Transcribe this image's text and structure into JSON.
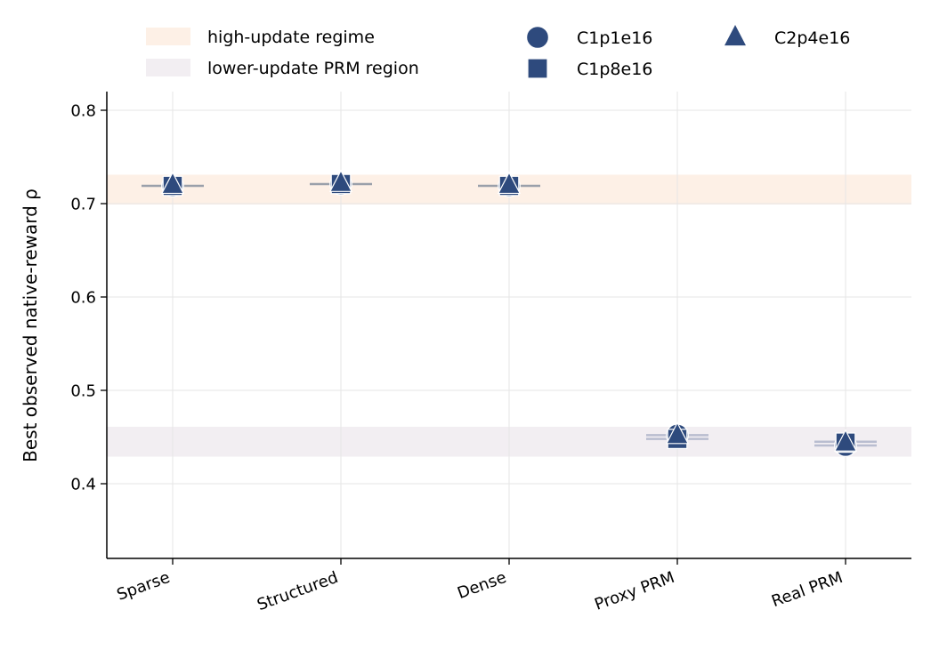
{
  "chart_data": {
    "type": "scatter",
    "title": "",
    "xlabel": "",
    "ylabel": "Best observed native-reward ρ",
    "ylim": [
      0.32,
      0.82
    ],
    "yticks": [
      0.4,
      0.5,
      0.6,
      0.7,
      0.8
    ],
    "categories": [
      "Sparse",
      "Structured",
      "Dense",
      "Proxy PRM",
      "Real PRM"
    ],
    "grid": true,
    "legend_position": "top",
    "marker_color": "#2e4a7d",
    "bands": [
      {
        "name": "high-update regime",
        "y0": 0.699,
        "y1": 0.731,
        "color": "#fdf0e6"
      },
      {
        "name": "lower-update PRM region",
        "y0": 0.429,
        "y1": 0.461,
        "color": "#f2eef2"
      }
    ],
    "series": [
      {
        "name": "C1p1e16",
        "marker": "circle",
        "values": [
          0.719,
          0.721,
          0.719,
          0.452,
          0.441
        ]
      },
      {
        "name": "C1p8e16",
        "marker": "square",
        "values": [
          0.719,
          0.721,
          0.719,
          0.448,
          0.444
        ]
      },
      {
        "name": "C2p4e16",
        "marker": "triangle",
        "values": [
          0.72,
          0.722,
          0.72,
          0.452,
          0.444
        ]
      }
    ],
    "reference_ticks": [
      {
        "category": "Sparse",
        "values": [
          0.719
        ],
        "color": "#9aa0aa"
      },
      {
        "category": "Structured",
        "values": [
          0.721
        ],
        "color": "#9aa0aa"
      },
      {
        "category": "Dense",
        "values": [
          0.719
        ],
        "color": "#9aa0aa"
      },
      {
        "category": "Proxy PRM",
        "values": [
          0.452,
          0.448
        ],
        "color": "#b9bdd0"
      },
      {
        "category": "Real PRM",
        "values": [
          0.445,
          0.441
        ],
        "color": "#b9bdd0"
      }
    ]
  }
}
